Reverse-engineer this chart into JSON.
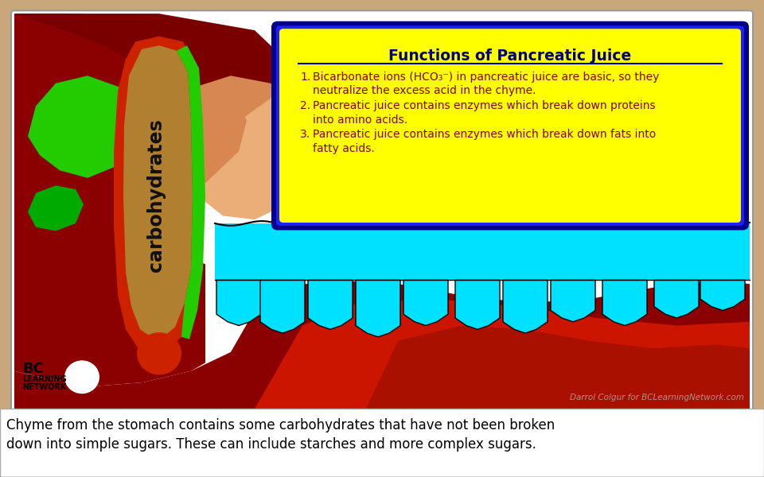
{
  "frame_color": "#c8a87a",
  "bg_color": "#ffffff",
  "title_text": "Functions of Pancreatic Juice",
  "title_color": "#00008B",
  "box_bg": "#ffff00",
  "box_border_dark": "#00008B",
  "box_border_bright": "#2020ff",
  "list_color": "#8B0000",
  "list_items": [
    "Bicarbonate ions (HCO₃⁻) in pancreatic juice are basic, so they\nneutralize the excess acid in the chyme.",
    "Pancreatic juice contains enzymes which break down proteins\ninto amino acids.",
    "Pancreatic juice contains enzymes which break down fats into\nfatty acids."
  ],
  "carbohydrates_text": "carbohydrates",
  "carbohydrates_color": "#111111",
  "watermark": "Darrol Colgur for BCLearningNetwork.com",
  "watermark_color": "#b0b0b0",
  "caption_line1": "Chyme from the stomach contains some carbohydrates that have not been broken",
  "caption_line2": "down into simple sugars. These can include starches and more complex sugars.",
  "dark_red": "#8B0000",
  "red": "#cc2200",
  "bright_red": "#dd2200",
  "green": "#22cc00",
  "dark_green": "#007700",
  "tan": "#b08030",
  "orange": "#e07840",
  "orange_light": "#e8a060",
  "cyan": "#00e0ff",
  "cyan_dark": "#00c0d0"
}
